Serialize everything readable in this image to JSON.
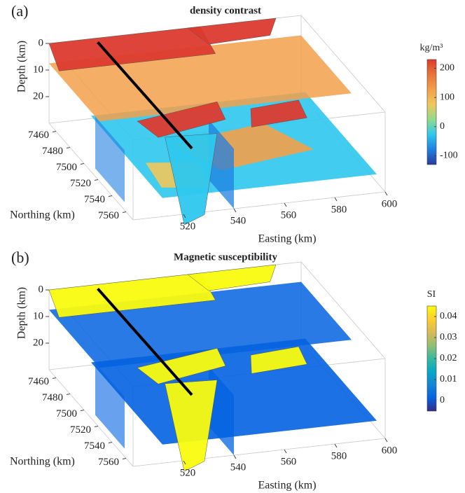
{
  "chart_data": [
    {
      "type": "voxel3d",
      "panel_label": "(a)",
      "title": "density contrast",
      "xlabel": "Easting (km)",
      "ylabel": "Northing (km)",
      "zlabel": "Depth (km)",
      "xlim": [
        500,
        600
      ],
      "xticks": [
        520,
        540,
        560,
        580,
        600
      ],
      "ylim": [
        7450,
        7570
      ],
      "yticks": [
        7460,
        7480,
        7500,
        7520,
        7540,
        7560
      ],
      "zlim": [
        0,
        30
      ],
      "zticks": [
        0,
        10,
        20
      ],
      "colorbar": {
        "label": "kg/m³",
        "clim": [
          -130,
          230
        ],
        "ticks": [
          -100,
          0,
          100,
          200
        ],
        "colors": [
          "#2b3a9e",
          "#1f7fe0",
          "#2ec8ee",
          "#8fdc8c",
          "#f0c85a",
          "#f3a04a",
          "#e8743a",
          "#dc3a2e"
        ]
      }
    },
    {
      "type": "voxel3d",
      "panel_label": "(b)",
      "title": "Magnetic susceptibility",
      "xlabel": "Easting (km)",
      "ylabel": "Northing (km)",
      "zlabel": "Depth (km)",
      "xlim": [
        500,
        600
      ],
      "xticks": [
        520,
        540,
        560,
        580,
        600
      ],
      "ylim": [
        7450,
        7570
      ],
      "yticks": [
        7460,
        7480,
        7500,
        7520,
        7540,
        7560
      ],
      "zlim": [
        0,
        30
      ],
      "zticks": [
        0,
        10,
        20
      ],
      "colorbar": {
        "label": "SI",
        "clim": [
          -0.005,
          0.045
        ],
        "ticks": [
          0,
          0.01,
          0.02,
          0.03,
          0.04
        ],
        "colors": [
          "#352a87",
          "#0363e1",
          "#1485d4",
          "#06a7c6",
          "#38b99e",
          "#92bf73",
          "#d9ba56",
          "#fcce2e",
          "#f9fb0e"
        ]
      }
    }
  ]
}
